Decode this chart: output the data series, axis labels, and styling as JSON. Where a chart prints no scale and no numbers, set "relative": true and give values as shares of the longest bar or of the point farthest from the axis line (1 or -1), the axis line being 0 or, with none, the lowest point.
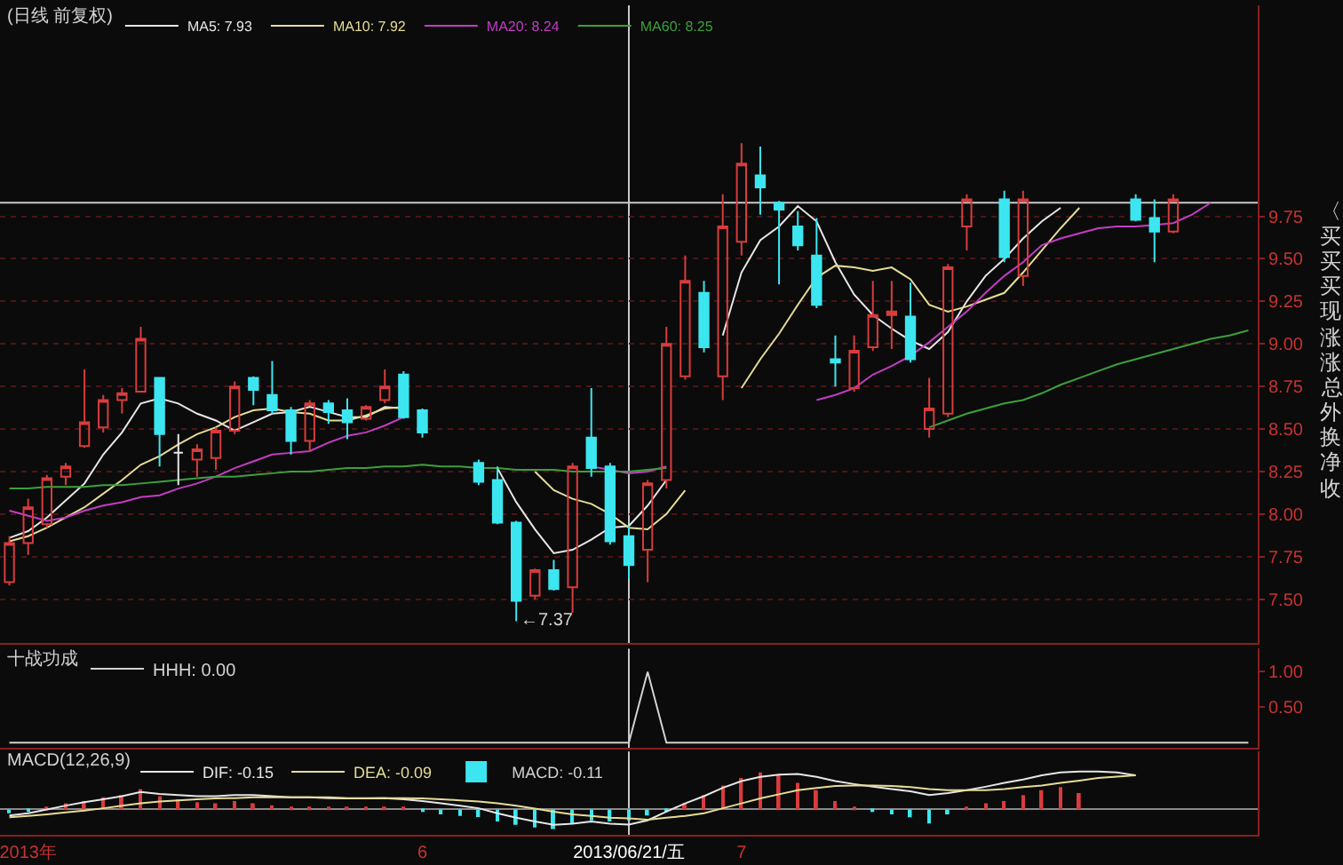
{
  "chart_data": [
    {
      "type": "candlestick",
      "title": "(日线 前复权)",
      "categories": [
        null,
        "2013年",
        null,
        null,
        null,
        null,
        null,
        null,
        null,
        null,
        null,
        null,
        null,
        null,
        null,
        null,
        null,
        null,
        null,
        null,
        null,
        null,
        "6",
        null,
        null,
        null,
        null,
        null,
        null,
        null,
        null,
        null,
        null,
        "2013/06/21/五",
        null,
        null,
        null,
        null,
        null,
        "7",
        null,
        null,
        null,
        null,
        null,
        null,
        null,
        null,
        null,
        null,
        null,
        null,
        null,
        null,
        null,
        null,
        null,
        null,
        null,
        null,
        null,
        null,
        null,
        null,
        null,
        null,
        null
      ],
      "ohlc": [
        [
          7.6,
          7.87,
          7.58,
          7.83
        ],
        [
          7.83,
          8.09,
          7.76,
          8.04
        ],
        [
          7.94,
          8.23,
          7.92,
          8.21
        ],
        [
          8.22,
          8.3,
          8.17,
          8.28
        ],
        [
          8.4,
          8.85,
          8.39,
          8.54
        ],
        [
          8.51,
          8.7,
          8.48,
          8.67
        ],
        [
          8.67,
          8.74,
          8.59,
          8.71
        ],
        [
          8.72,
          9.1,
          8.72,
          9.03
        ],
        [
          8.8,
          8.8,
          8.28,
          8.47
        ],
        [
          8.36,
          8.47,
          8.17,
          8.36
        ],
        [
          8.32,
          8.41,
          8.22,
          8.38
        ],
        [
          8.33,
          8.51,
          8.26,
          8.49
        ],
        [
          8.49,
          8.78,
          8.47,
          8.75
        ],
        [
          8.8,
          8.81,
          8.64,
          8.73
        ],
        [
          8.7,
          8.9,
          8.59,
          8.61
        ],
        [
          8.61,
          8.63,
          8.35,
          8.43
        ],
        [
          8.43,
          8.67,
          8.37,
          8.65
        ],
        [
          8.65,
          8.67,
          8.53,
          8.6
        ],
        [
          8.61,
          8.68,
          8.44,
          8.54
        ],
        [
          8.56,
          8.64,
          8.55,
          8.63
        ],
        [
          8.67,
          8.85,
          8.65,
          8.75
        ],
        [
          8.82,
          8.84,
          8.56,
          8.57
        ],
        [
          8.61,
          8.62,
          8.45,
          8.48
        ],
        null,
        null,
        [
          8.3,
          8.32,
          8.17,
          8.19
        ],
        [
          8.2,
          8.28,
          7.94,
          7.95
        ],
        [
          7.95,
          7.96,
          7.37,
          7.49
        ],
        [
          7.52,
          7.68,
          7.5,
          7.67
        ],
        [
          7.67,
          7.73,
          7.55,
          7.56
        ],
        [
          7.57,
          8.3,
          7.42,
          8.28
        ],
        [
          8.45,
          8.74,
          8.22,
          8.27
        ],
        [
          8.28,
          8.3,
          7.82,
          7.84
        ],
        [
          7.87,
          7.93,
          7.62,
          7.7
        ],
        [
          7.79,
          8.2,
          7.6,
          8.18
        ],
        [
          8.2,
          9.1,
          8.15,
          9.0
        ],
        [
          8.81,
          9.52,
          8.79,
          9.37
        ],
        [
          9.3,
          9.37,
          8.95,
          8.98
        ],
        [
          8.81,
          9.88,
          8.67,
          9.69
        ],
        [
          9.6,
          10.18,
          9.52,
          10.06
        ],
        [
          9.99,
          10.16,
          9.76,
          9.92
        ],
        [
          9.83,
          9.84,
          9.35,
          9.79
        ],
        [
          9.69,
          9.78,
          9.55,
          9.58
        ],
        [
          9.52,
          9.74,
          9.21,
          9.23
        ],
        [
          8.91,
          9.05,
          8.75,
          8.89
        ],
        [
          8.74,
          9.05,
          8.72,
          8.96
        ],
        [
          8.98,
          9.37,
          8.96,
          9.17
        ],
        [
          9.17,
          9.37,
          8.97,
          9.19
        ],
        [
          9.16,
          9.36,
          8.89,
          8.91
        ],
        [
          8.5,
          8.8,
          8.45,
          8.62
        ],
        [
          8.59,
          9.47,
          8.57,
          9.45
        ],
        [
          9.69,
          9.88,
          9.55,
          9.85
        ],
        null,
        [
          9.85,
          9.9,
          9.48,
          9.51
        ],
        [
          9.4,
          9.9,
          9.34,
          9.85
        ],
        null,
        null,
        null,
        null,
        null,
        [
          9.85,
          9.88,
          9.72,
          9.73
        ],
        [
          9.74,
          9.85,
          9.48,
          9.66
        ],
        [
          9.66,
          9.88,
          9.65,
          9.85
        ],
        null,
        null,
        null,
        null
      ],
      "colors": [
        "#d83c3c",
        "#d83c3c",
        "#d83c3c",
        "#d83c3c",
        "#d83c3c",
        "#d83c3c",
        "#d83c3c",
        "#d83c3c",
        "#3ce6f0",
        "#e6e6e6",
        "#d83c3c",
        "#d83c3c",
        "#d83c3c",
        "#3ce6f0",
        "#3ce6f0",
        "#3ce6f0",
        "#d83c3c",
        "#3ce6f0",
        "#3ce6f0",
        "#d83c3c",
        "#d83c3c",
        "#3ce6f0",
        "#3ce6f0",
        null,
        null,
        "#3ce6f0",
        "#3ce6f0",
        "#3ce6f0",
        "#d83c3c",
        "#3ce6f0",
        "#d83c3c",
        "#3ce6f0",
        "#3ce6f0",
        "#3ce6f0",
        "#d83c3c",
        "#d83c3c",
        "#d83c3c",
        "#3ce6f0",
        "#d83c3c",
        "#d83c3c",
        "#3ce6f0",
        "#3ce6f0",
        "#3ce6f0",
        "#3ce6f0",
        "#3ce6f0",
        "#d83c3c",
        "#d83c3c",
        "#d83c3c",
        "#3ce6f0",
        "#d83c3c",
        "#d83c3c",
        "#d83c3c",
        null,
        "#3ce6f0",
        "#d83c3c",
        null,
        null,
        null,
        null,
        null,
        "#3ce6f0",
        "#3ce6f0",
        "#d83c3c",
        null,
        null,
        null,
        null
      ],
      "series": [
        {
          "name": "MA5: 7.93",
          "type": "line",
          "color": "#e6e6e6",
          "values": [
            7.86,
            7.9,
            7.98,
            8.08,
            8.18,
            8.35,
            8.48,
            8.65,
            8.68,
            8.65,
            8.59,
            8.55,
            8.49,
            8.54,
            8.59,
            8.6,
            8.63,
            8.6,
            8.57,
            8.57,
            8.63,
            8.62,
            null,
            null,
            null,
            null,
            8.27,
            8.07,
            7.91,
            7.77,
            7.79,
            7.85,
            7.92,
            7.93,
            8.05,
            8.2,
            null,
            null,
            9.05,
            9.42,
            9.61,
            9.69,
            9.81,
            9.72,
            9.48,
            9.29,
            9.17,
            9.09,
            9.02,
            8.97,
            9.07,
            9.25,
            9.4,
            9.5,
            9.62,
            9.72,
            9.8,
            null,
            null,
            null,
            null,
            null,
            null,
            null,
            null,
            null,
            null
          ]
        },
        {
          "name": "MA10: 7.92",
          "type": "line",
          "color": "#e6dc96",
          "values": [
            7.84,
            7.87,
            7.92,
            7.98,
            8.04,
            8.12,
            8.2,
            8.29,
            8.34,
            8.41,
            8.47,
            8.51,
            8.57,
            8.61,
            8.62,
            8.6,
            8.59,
            8.55,
            8.55,
            8.58,
            8.62,
            8.63,
            null,
            null,
            null,
            null,
            null,
            null,
            8.25,
            8.14,
            8.09,
            8.06,
            8.0,
            7.92,
            7.91,
            8.0,
            8.14,
            null,
            null,
            8.74,
            8.91,
            9.06,
            9.23,
            9.39,
            9.46,
            9.45,
            9.43,
            9.45,
            9.38,
            9.23,
            9.19,
            9.22,
            9.26,
            9.3,
            9.42,
            9.55,
            9.68,
            9.8,
            null,
            null,
            null,
            null,
            null,
            null,
            null,
            null,
            null
          ]
        },
        {
          "name": "MA20: 8.24",
          "type": "line",
          "color": "#c43cc4",
          "values": [
            8.02,
            7.99,
            7.96,
            7.98,
            8.02,
            8.05,
            8.07,
            8.1,
            8.11,
            8.15,
            8.18,
            8.22,
            8.27,
            8.31,
            8.35,
            8.36,
            8.37,
            8.42,
            8.46,
            8.48,
            8.52,
            8.57,
            null,
            null,
            null,
            null,
            null,
            null,
            null,
            null,
            null,
            8.28,
            8.26,
            8.24,
            8.25,
            8.28,
            null,
            null,
            null,
            null,
            null,
            null,
            null,
            8.67,
            8.7,
            8.74,
            8.82,
            8.87,
            8.93,
            9.01,
            9.1,
            9.19,
            9.3,
            9.4,
            9.48,
            9.58,
            9.62,
            9.65,
            9.68,
            9.69,
            9.69,
            9.7,
            9.71,
            9.76,
            9.83,
            null,
            null
          ]
        },
        {
          "name": "MA60: 8.25",
          "type": "line",
          "color": "#3ca03c",
          "values": [
            8.15,
            8.15,
            8.16,
            8.16,
            8.16,
            8.17,
            8.17,
            8.18,
            8.19,
            8.2,
            8.21,
            8.22,
            8.22,
            8.23,
            8.24,
            8.25,
            8.25,
            8.26,
            8.27,
            8.27,
            8.28,
            8.28,
            8.29,
            8.28,
            8.28,
            8.27,
            8.27,
            8.26,
            8.26,
            8.26,
            8.25,
            8.25,
            8.25,
            8.25,
            8.26,
            8.27,
            null,
            null,
            null,
            null,
            null,
            null,
            null,
            null,
            null,
            null,
            null,
            null,
            null,
            8.51,
            8.55,
            8.59,
            8.62,
            8.65,
            8.67,
            8.71,
            8.76,
            8.8,
            8.84,
            8.88,
            8.91,
            8.94,
            8.97,
            9.0,
            9.03,
            9.05,
            9.08
          ]
        }
      ],
      "ylim": [
        7.24,
        10.99
      ],
      "yticks": [
        {
          "value": 7.5,
          "label": "7.50"
        },
        7.75,
        {
          "value": 8.0,
          "label": "8.00"
        },
        8.25,
        {
          "value": 8.5,
          "label": "8.50"
        },
        8.75,
        {
          "value": 9.0,
          "label": "9.00"
        },
        9.25,
        {
          "value": 9.5,
          "label": "9.50"
        },
        9.75
      ],
      "grid": "y",
      "legend": "top left",
      "tick_labels": "y",
      "ref_lines": [
        {
          "axis": "x",
          "value": "2013/06/21/五",
          "color": "#c8c8c8"
        },
        {
          "axis": "y",
          "value": 9.83,
          "color": "#c8c8c8"
        }
      ],
      "annotations": [
        "←7.37",
        "〈",
        "买",
        "买",
        "买",
        "现",
        "涨",
        "涨",
        "总",
        "外",
        "换",
        "净",
        "收"
      ]
    },
    {
      "type": "line",
      "title": "十战功成",
      "categories": [
        null,
        "2013年",
        null,
        null,
        null,
        null,
        null,
        null,
        null,
        null,
        null,
        null,
        null,
        null,
        null,
        null,
        null,
        null,
        null,
        null,
        null,
        null,
        "6",
        null,
        null,
        null,
        null,
        null,
        null,
        null,
        null,
        null,
        null,
        "2013/06/21/五",
        null,
        null,
        null,
        null,
        null,
        "7",
        null,
        null,
        null,
        null,
        null,
        null,
        null,
        null,
        null,
        null,
        null,
        null,
        null,
        null,
        null,
        null,
        null,
        null,
        null,
        null,
        null,
        null,
        null,
        null,
        null,
        null,
        null
      ],
      "series": [
        {
          "name": "HHH: 0.00",
          "color": "#d2d2d2",
          "values": [
            0,
            0,
            0,
            0,
            0,
            0,
            0,
            0,
            0,
            0,
            0,
            0,
            0,
            0,
            0,
            0,
            0,
            0,
            0,
            0,
            0,
            0,
            0,
            0,
            0,
            0,
            0,
            0,
            0,
            0,
            0,
            0,
            0,
            0,
            1,
            0,
            0,
            0,
            0,
            0,
            0,
            0,
            0,
            0,
            0,
            0,
            0,
            0,
            0,
            0,
            0,
            0,
            0,
            0,
            0,
            0,
            0,
            0,
            0,
            0,
            0,
            0,
            0,
            0,
            0,
            0,
            0
          ]
        }
      ],
      "ylim": [
        -0.075,
        1.325
      ],
      "yticks": [
        {
          "value": 0.5,
          "label": "0.50"
        },
        {
          "value": 1.0,
          "label": "1.00"
        }
      ],
      "legend": "top left",
      "tick_labels": "y",
      "ref_lines": [
        {
          "axis": "x",
          "value": "2013/06/21/五",
          "color": "#c8c8c8"
        }
      ]
    },
    {
      "type": "line",
      "title": "MACD(12,26,9)",
      "relative": true,
      "categories": [
        null,
        "2013年",
        null,
        null,
        null,
        null,
        null,
        null,
        null,
        null,
        null,
        null,
        null,
        null,
        null,
        null,
        null,
        null,
        null,
        null,
        null,
        null,
        "6",
        null,
        null,
        null,
        null,
        null,
        null,
        null,
        null,
        null,
        null,
        "2013/06/21/五",
        null,
        null,
        null,
        null,
        null,
        "7",
        null,
        null,
        null,
        null,
        null,
        null,
        null,
        null,
        null,
        null,
        null,
        null,
        null,
        null,
        null,
        null,
        null,
        null,
        null,
        null,
        null,
        null,
        null,
        null,
        null,
        null,
        null
      ],
      "series": [
        {
          "name": "DIF: -0.15",
          "color": "#e6e6e6",
          "values": [
            -0.16,
            -0.1,
            0,
            0.1,
            0.19,
            0.27,
            0.35,
            0.46,
            0.41,
            0.38,
            0.35,
            0.35,
            0.38,
            0.38,
            0.35,
            0.32,
            0.32,
            0.3,
            0.29,
            0.29,
            0.3,
            0.27,
            0.22,
            0.16,
            0.1,
            0.03,
            -0.1,
            -0.22,
            -0.32,
            -0.41,
            -0.38,
            -0.32,
            -0.38,
            -0.4,
            -0.29,
            -0.06,
            0.16,
            0.35,
            0.57,
            0.75,
            0.86,
            0.92,
            0.94,
            0.86,
            0.75,
            0.67,
            0.6,
            0.54,
            0.48,
            0.38,
            0.43,
            0.51,
            0.6,
            0.7,
            0.79,
            0.9,
            0.98,
            1.0,
            1.0,
            0.98,
            0.9,
            null,
            null,
            null,
            null,
            null,
            null
          ]
        },
        {
          "name": "DEA: -0.09",
          "color": "#e6dc96",
          "values": [
            -0.21,
            -0.17,
            -0.13,
            -0.08,
            -0.03,
            0.03,
            0.1,
            0.16,
            0.21,
            0.24,
            0.27,
            0.29,
            0.3,
            0.32,
            0.32,
            0.32,
            0.32,
            0.32,
            0.3,
            0.3,
            0.3,
            0.3,
            0.29,
            0.27,
            0.24,
            0.21,
            0.16,
            0.1,
            0.02,
            -0.06,
            -0.13,
            -0.17,
            -0.22,
            -0.24,
            -0.27,
            -0.22,
            -0.17,
            -0.1,
            0.03,
            0.16,
            0.29,
            0.4,
            0.51,
            0.57,
            0.62,
            0.63,
            0.63,
            0.62,
            0.59,
            0.54,
            0.51,
            0.51,
            0.51,
            0.54,
            0.59,
            0.63,
            0.7,
            0.76,
            0.83,
            0.87,
            0.9,
            null,
            null,
            null,
            null,
            null,
            null
          ]
        },
        {
          "name": "MACD: -0.11",
          "type": "bar",
          "colors": [
            "#3ce6f0",
            "#3ce6f0",
            "#d83c3c",
            "#d83c3c",
            "#d83c3c",
            "#d83c3c",
            "#d83c3c",
            "#d83c3c",
            "#d83c3c",
            "#d83c3c",
            "#d83c3c",
            "#d83c3c",
            "#d83c3c",
            "#d83c3c",
            "#d83c3c",
            "#d83c3c",
            "#d83c3c",
            "#d83c3c",
            "#d83c3c",
            "#d83c3c",
            "#d83c3c",
            "#d83c3c",
            "#3ce6f0",
            "#3ce6f0",
            "#3ce6f0",
            "#3ce6f0",
            "#3ce6f0",
            "#3ce6f0",
            "#3ce6f0",
            "#3ce6f0",
            "#3ce6f0",
            "#3ce6f0",
            "#3ce6f0",
            "#3ce6f0",
            "#3ce6f0",
            "#3ce6f0",
            "#d83c3c",
            "#d83c3c",
            "#d83c3c",
            "#d83c3c",
            "#d83c3c",
            "#d83c3c",
            "#d83c3c",
            "#d83c3c",
            "#d83c3c",
            "#d83c3c",
            "#3ce6f0",
            "#3ce6f0",
            "#3ce6f0",
            "#3ce6f0",
            "#3ce6f0",
            "#d83c3c",
            "#d83c3c",
            "#d83c3c",
            "#d83c3c",
            "#d83c3c",
            "#d83c3c",
            "#d83c3c",
            null,
            null,
            null,
            null,
            null,
            null,
            null,
            null,
            null
          ],
          "values": [
            -0.1,
            -0.05,
            0.05,
            0.16,
            0.22,
            0.32,
            0.38,
            0.54,
            0.35,
            0.27,
            0.19,
            0.16,
            0.22,
            0.16,
            0.11,
            0.05,
            0.05,
            0.05,
            0.03,
            0.05,
            0.05,
            0.03,
            -0.05,
            -0.13,
            -0.17,
            -0.2,
            -0.32,
            -0.41,
            -0.48,
            -0.52,
            -0.37,
            -0.29,
            -0.32,
            -0.29,
            -0.16,
            -0.05,
            0.16,
            0.38,
            0.63,
            0.83,
            0.98,
            0.9,
            0.7,
            0.51,
            0.22,
            0.06,
            -0.06,
            -0.13,
            -0.21,
            -0.37,
            -0.13,
            0.06,
            0.16,
            0.22,
            0.38,
            0.51,
            0.59,
            0.43,
            null,
            null,
            null,
            null,
            null,
            null,
            null,
            null,
            null
          ]
        }
      ],
      "legend": "top left",
      "tick_labels": "x",
      "ref_lines": [
        {
          "axis": "x",
          "value": "2013/06/21/五",
          "color": "#c8c8c8"
        }
      ]
    }
  ]
}
